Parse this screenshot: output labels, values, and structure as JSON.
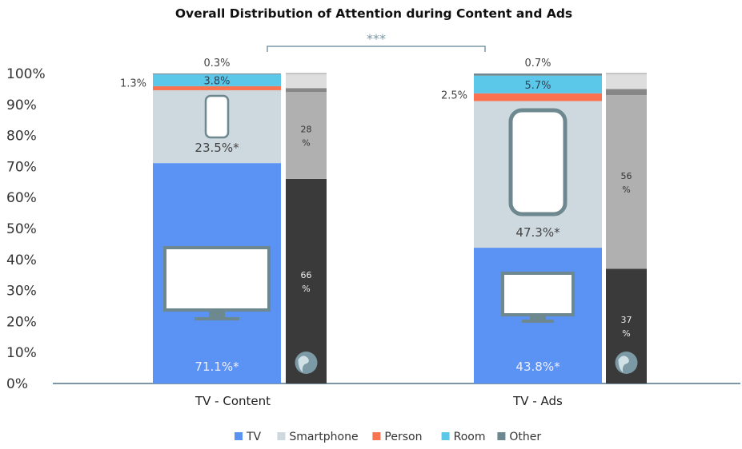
{
  "chart_data": {
    "type": "bar",
    "title": "Overall Distribution of Attention during Content and Ads",
    "ylim": [
      0,
      100
    ],
    "yticks": [
      "0%",
      "10%",
      "20%",
      "30%",
      "40%",
      "50%",
      "60%",
      "70%",
      "80%",
      "90%",
      "100%"
    ],
    "categories": [
      "TV - Content",
      "TV - Ads"
    ],
    "series": [
      {
        "name": "TV",
        "color": "#5b93f5",
        "values": [
          71.1,
          43.8
        ],
        "labels": [
          "71.1%*",
          "43.8%*"
        ]
      },
      {
        "name": "Smartphone",
        "color": "#cdd9df",
        "values": [
          23.5,
          47.3
        ],
        "labels": [
          "23.5%*",
          "47.3%*"
        ]
      },
      {
        "name": "Person",
        "color": "#f97350",
        "values": [
          1.3,
          2.5
        ],
        "labels": [
          "1.3%",
          "2.5%"
        ]
      },
      {
        "name": "Room",
        "color": "#5bc8ea",
        "values": [
          3.8,
          5.7
        ],
        "labels": [
          "3.8%",
          "5.7%"
        ]
      },
      {
        "name": "Other",
        "color": "#6e8890",
        "values": [
          0.3,
          0.7
        ],
        "labels": [
          "0.3%",
          "0.7%"
        ]
      }
    ],
    "side_bars": [
      {
        "segments": [
          {
            "value": 66,
            "color": "#3a3a3a",
            "label": "66\n%"
          },
          {
            "value": 28,
            "color": "#b0b0b0",
            "label": "28\n%"
          },
          {
            "value": 1.3,
            "color": "#878787",
            "label": ""
          },
          {
            "value": 4.7,
            "color": "#dedede",
            "label": ""
          }
        ]
      },
      {
        "segments": [
          {
            "value": 37,
            "color": "#3a3a3a",
            "label": "37\n%"
          },
          {
            "value": 56,
            "color": "#b0b0b0",
            "label": "56\n%"
          },
          {
            "value": 2,
            "color": "#878787",
            "label": ""
          },
          {
            "value": 5,
            "color": "#dedede",
            "label": ""
          }
        ]
      }
    ],
    "significance": "***",
    "legend_position": "bottom"
  }
}
